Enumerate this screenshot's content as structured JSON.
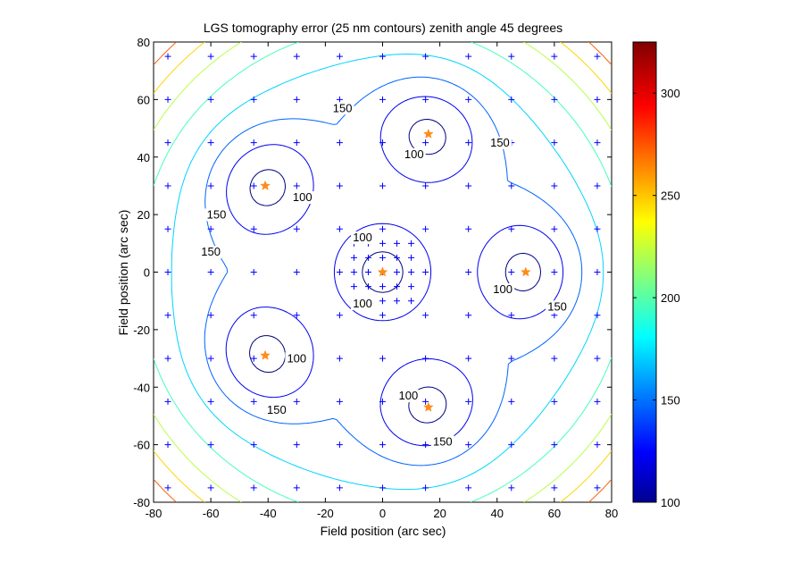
{
  "chart_data": {
    "type": "contour",
    "title": "LGS tomography error (25 nm contours) zenith angle 45 degrees",
    "xlabel": "Field position (arc sec)",
    "ylabel": "Field position (arc sec)",
    "xlim": [
      -80,
      80
    ],
    "ylim": [
      -80,
      80
    ],
    "xticks": [
      -80,
      -60,
      -40,
      -20,
      0,
      20,
      40,
      60,
      80
    ],
    "yticks": [
      -80,
      -60,
      -40,
      -20,
      0,
      20,
      40,
      60,
      80
    ],
    "colorbar": {
      "colormap": "jet",
      "range": [
        100,
        325
      ],
      "ticks": [
        100,
        150,
        200,
        250,
        300
      ]
    },
    "contour_levels": [
      100,
      125,
      150,
      175,
      200,
      225,
      250,
      275,
      300,
      325
    ],
    "contour_labels": [
      {
        "text": "150",
        "x": -14,
        "y": 56
      },
      {
        "text": "150",
        "x": 41,
        "y": 44
      },
      {
        "text": "100",
        "x": 11,
        "y": 40
      },
      {
        "text": "100",
        "x": -28,
        "y": 25
      },
      {
        "text": "150",
        "x": -58,
        "y": 19
      },
      {
        "text": "150",
        "x": -60,
        "y": 6
      },
      {
        "text": "100",
        "x": -7,
        "y": 11
      },
      {
        "text": "100",
        "x": 42,
        "y": -7
      },
      {
        "text": "100",
        "x": -7,
        "y": -12
      },
      {
        "text": "150",
        "x": 61,
        "y": -13
      },
      {
        "text": "100",
        "x": -30,
        "y": -31
      },
      {
        "text": "100",
        "x": 9,
        "y": -44
      },
      {
        "text": "150",
        "x": -37,
        "y": -49
      },
      {
        "text": "150",
        "x": 21,
        "y": -60
      }
    ],
    "grid_points_spacing": 15,
    "grid_points_range": [
      -75,
      75
    ],
    "inner_grid_points_spacing": 5,
    "inner_grid_points_range": [
      -10,
      10
    ],
    "guide_stars": [
      {
        "x": 0,
        "y": 0
      },
      {
        "x": -41,
        "y": 30
      },
      {
        "x": 16,
        "y": 48
      },
      {
        "x": 50,
        "y": 0
      },
      {
        "x": 16,
        "y": -47
      },
      {
        "x": -41,
        "y": -29
      }
    ],
    "colors": {
      "grid_marker": "#0000ff",
      "guide_star": "#ff8c1a",
      "axes": "#000000"
    }
  }
}
